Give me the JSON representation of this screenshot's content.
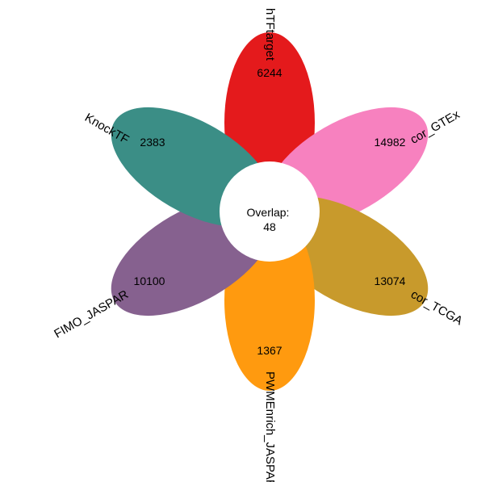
{
  "center": {
    "label_line1": "Overlap:",
    "label_line2": "48"
  },
  "sets": [
    {
      "name": "hTFtarget",
      "count": "6244",
      "color": "#e41a1c"
    },
    {
      "name": "cor_GTEx",
      "count": "14982",
      "color": "#f781bf"
    },
    {
      "name": "cor_TCGA",
      "count": "13074",
      "color": "#c89a2c"
    },
    {
      "name": "PWMEnrich_JASPAR",
      "count": "1367",
      "color": "#ff9a0f"
    },
    {
      "name": "FIMO_JASPAR",
      "count": "10100",
      "color": "#86618f"
    },
    {
      "name": "KnockTF",
      "count": "2383",
      "color": "#3b8e86"
    }
  ]
}
